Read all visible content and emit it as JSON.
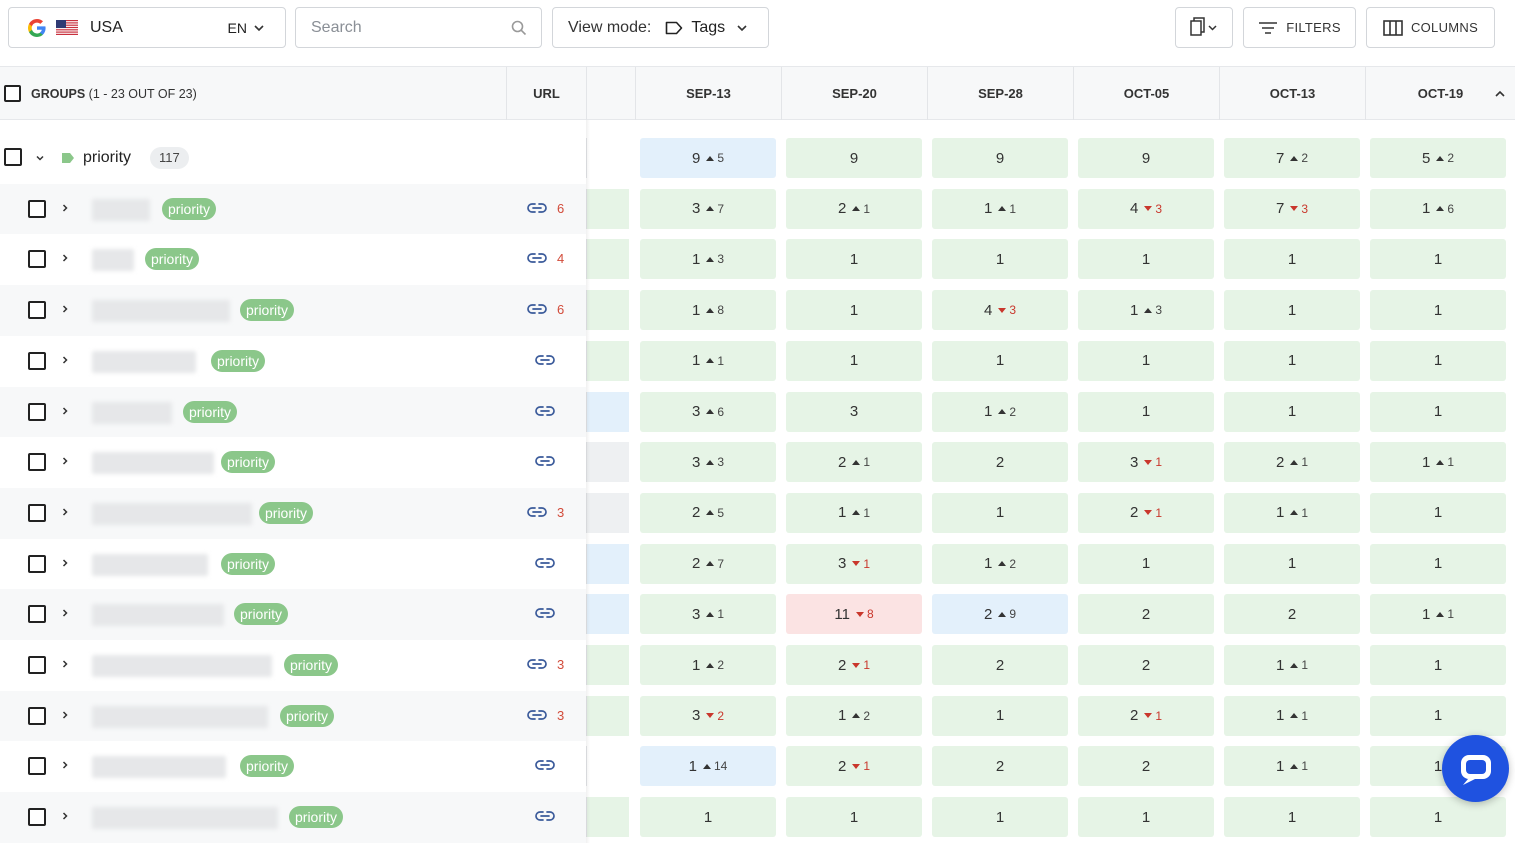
{
  "toolbar": {
    "location": "USA",
    "language": "EN",
    "search_placeholder": "Search",
    "view_mode_label": "View mode:",
    "view_mode_value": "Tags",
    "filters_label": "FILTERS",
    "columns_label": "COLUMNS"
  },
  "header": {
    "groups_label": "GROUPS",
    "groups_range": "(1 - 23 OUT OF 23)",
    "url_label": "URL",
    "dates": [
      "SEP-13",
      "SEP-20",
      "SEP-28",
      "OCT-05",
      "OCT-13",
      "OCT-19"
    ]
  },
  "group": {
    "name": "priority",
    "count": "117",
    "cells": [
      {
        "v": "9",
        "d": "5",
        "dir": "up",
        "bg": "blue"
      },
      {
        "v": "9",
        "d": "",
        "dir": "",
        "bg": "green"
      },
      {
        "v": "9",
        "d": "",
        "dir": "",
        "bg": "green"
      },
      {
        "v": "9",
        "d": "",
        "dir": "",
        "bg": "green"
      },
      {
        "v": "7",
        "d": "2",
        "dir": "up",
        "bg": "green"
      },
      {
        "v": "5",
        "d": "2",
        "dir": "up",
        "bg": "green"
      }
    ]
  },
  "rows": [
    {
      "tag": "priority",
      "link_count": "6",
      "cells": [
        {
          "v": "3",
          "d": "7",
          "dir": "up",
          "bg": "green"
        },
        {
          "v": "2",
          "d": "1",
          "dir": "up",
          "bg": "green"
        },
        {
          "v": "1",
          "d": "1",
          "dir": "up",
          "bg": "green"
        },
        {
          "v": "4",
          "d": "3",
          "dir": "down",
          "bg": "green"
        },
        {
          "v": "7",
          "d": "3",
          "dir": "down",
          "bg": "green"
        },
        {
          "v": "1",
          "d": "6",
          "dir": "up",
          "bg": "green"
        }
      ]
    },
    {
      "tag": "priority",
      "link_count": "4",
      "cells": [
        {
          "v": "1",
          "d": "3",
          "dir": "up",
          "bg": "green"
        },
        {
          "v": "1",
          "d": "",
          "dir": "",
          "bg": "green"
        },
        {
          "v": "1",
          "d": "",
          "dir": "",
          "bg": "green"
        },
        {
          "v": "1",
          "d": "",
          "dir": "",
          "bg": "green"
        },
        {
          "v": "1",
          "d": "",
          "dir": "",
          "bg": "green"
        },
        {
          "v": "1",
          "d": "",
          "dir": "",
          "bg": "green"
        }
      ]
    },
    {
      "tag": "priority",
      "link_count": "6",
      "cells": [
        {
          "v": "1",
          "d": "8",
          "dir": "up",
          "bg": "green"
        },
        {
          "v": "1",
          "d": "",
          "dir": "",
          "bg": "green"
        },
        {
          "v": "4",
          "d": "3",
          "dir": "down",
          "bg": "green"
        },
        {
          "v": "1",
          "d": "3",
          "dir": "up",
          "bg": "green"
        },
        {
          "v": "1",
          "d": "",
          "dir": "",
          "bg": "green"
        },
        {
          "v": "1",
          "d": "",
          "dir": "",
          "bg": "green"
        }
      ]
    },
    {
      "tag": "priority",
      "link_count": "",
      "cells": [
        {
          "v": "1",
          "d": "1",
          "dir": "up",
          "bg": "green"
        },
        {
          "v": "1",
          "d": "",
          "dir": "",
          "bg": "green"
        },
        {
          "v": "1",
          "d": "",
          "dir": "",
          "bg": "green"
        },
        {
          "v": "1",
          "d": "",
          "dir": "",
          "bg": "green"
        },
        {
          "v": "1",
          "d": "",
          "dir": "",
          "bg": "green"
        },
        {
          "v": "1",
          "d": "",
          "dir": "",
          "bg": "green"
        }
      ]
    },
    {
      "tag": "priority",
      "link_count": "",
      "cells": [
        {
          "v": "3",
          "d": "6",
          "dir": "up",
          "bg": "green"
        },
        {
          "v": "3",
          "d": "",
          "dir": "",
          "bg": "green"
        },
        {
          "v": "1",
          "d": "2",
          "dir": "up",
          "bg": "green"
        },
        {
          "v": "1",
          "d": "",
          "dir": "",
          "bg": "green"
        },
        {
          "v": "1",
          "d": "",
          "dir": "",
          "bg": "green"
        },
        {
          "v": "1",
          "d": "",
          "dir": "",
          "bg": "green"
        }
      ]
    },
    {
      "tag": "priority",
      "link_count": "",
      "cells": [
        {
          "v": "3",
          "d": "3",
          "dir": "up",
          "bg": "green"
        },
        {
          "v": "2",
          "d": "1",
          "dir": "up",
          "bg": "green"
        },
        {
          "v": "2",
          "d": "",
          "dir": "",
          "bg": "green"
        },
        {
          "v": "3",
          "d": "1",
          "dir": "down",
          "bg": "green"
        },
        {
          "v": "2",
          "d": "1",
          "dir": "up",
          "bg": "green"
        },
        {
          "v": "1",
          "d": "1",
          "dir": "up",
          "bg": "green"
        }
      ]
    },
    {
      "tag": "priority",
      "link_count": "3",
      "cells": [
        {
          "v": "2",
          "d": "5",
          "dir": "up",
          "bg": "green"
        },
        {
          "v": "1",
          "d": "1",
          "dir": "up",
          "bg": "green"
        },
        {
          "v": "1",
          "d": "",
          "dir": "",
          "bg": "green"
        },
        {
          "v": "2",
          "d": "1",
          "dir": "down",
          "bg": "green"
        },
        {
          "v": "1",
          "d": "1",
          "dir": "up",
          "bg": "green"
        },
        {
          "v": "1",
          "d": "",
          "dir": "",
          "bg": "green"
        }
      ]
    },
    {
      "tag": "priority",
      "link_count": "",
      "cells": [
        {
          "v": "2",
          "d": "7",
          "dir": "up",
          "bg": "green"
        },
        {
          "v": "3",
          "d": "1",
          "dir": "down",
          "bg": "green"
        },
        {
          "v": "1",
          "d": "2",
          "dir": "up",
          "bg": "green"
        },
        {
          "v": "1",
          "d": "",
          "dir": "",
          "bg": "green"
        },
        {
          "v": "1",
          "d": "",
          "dir": "",
          "bg": "green"
        },
        {
          "v": "1",
          "d": "",
          "dir": "",
          "bg": "green"
        }
      ]
    },
    {
      "tag": "priority",
      "link_count": "",
      "cells": [
        {
          "v": "3",
          "d": "1",
          "dir": "up",
          "bg": "green"
        },
        {
          "v": "11",
          "d": "8",
          "dir": "down",
          "bg": "red"
        },
        {
          "v": "2",
          "d": "9",
          "dir": "up",
          "bg": "blue"
        },
        {
          "v": "2",
          "d": "",
          "dir": "",
          "bg": "green"
        },
        {
          "v": "2",
          "d": "",
          "dir": "",
          "bg": "green"
        },
        {
          "v": "1",
          "d": "1",
          "dir": "up",
          "bg": "green"
        }
      ]
    },
    {
      "tag": "priority",
      "link_count": "3",
      "cells": [
        {
          "v": "1",
          "d": "2",
          "dir": "up",
          "bg": "green"
        },
        {
          "v": "2",
          "d": "1",
          "dir": "down",
          "bg": "green"
        },
        {
          "v": "2",
          "d": "",
          "dir": "",
          "bg": "green"
        },
        {
          "v": "2",
          "d": "",
          "dir": "",
          "bg": "green"
        },
        {
          "v": "1",
          "d": "1",
          "dir": "up",
          "bg": "green"
        },
        {
          "v": "1",
          "d": "",
          "dir": "",
          "bg": "green"
        }
      ]
    },
    {
      "tag": "priority",
      "link_count": "3",
      "cells": [
        {
          "v": "3",
          "d": "2",
          "dir": "down",
          "bg": "green"
        },
        {
          "v": "1",
          "d": "2",
          "dir": "up",
          "bg": "green"
        },
        {
          "v": "1",
          "d": "",
          "dir": "",
          "bg": "green"
        },
        {
          "v": "2",
          "d": "1",
          "dir": "down",
          "bg": "green"
        },
        {
          "v": "1",
          "d": "1",
          "dir": "up",
          "bg": "green"
        },
        {
          "v": "1",
          "d": "",
          "dir": "",
          "bg": "green"
        }
      ]
    },
    {
      "tag": "priority",
      "link_count": "",
      "cells": [
        {
          "v": "1",
          "d": "14",
          "dir": "up",
          "bg": "blue"
        },
        {
          "v": "2",
          "d": "1",
          "dir": "down",
          "bg": "green"
        },
        {
          "v": "2",
          "d": "",
          "dir": "",
          "bg": "green"
        },
        {
          "v": "2",
          "d": "",
          "dir": "",
          "bg": "green"
        },
        {
          "v": "1",
          "d": "1",
          "dir": "up",
          "bg": "green"
        },
        {
          "v": "1",
          "d": "",
          "dir": "",
          "bg": "green"
        }
      ]
    },
    {
      "tag": "priority",
      "link_count": "",
      "cells": [
        {
          "v": "1",
          "d": "",
          "dir": "",
          "bg": "green"
        },
        {
          "v": "1",
          "d": "",
          "dir": "",
          "bg": "green"
        },
        {
          "v": "1",
          "d": "",
          "dir": "",
          "bg": "green"
        },
        {
          "v": "1",
          "d": "",
          "dir": "",
          "bg": "green"
        },
        {
          "v": "1",
          "d": "",
          "dir": "",
          "bg": "green"
        },
        {
          "v": "1",
          "d": "",
          "dir": "",
          "bg": "green"
        }
      ]
    }
  ],
  "colors": {
    "accent": "#1f52e0",
    "tag": "#8bc78a",
    "cell_green": "#e6f4e6",
    "cell_blue": "#e3f0fb",
    "cell_red": "#fbe3e3",
    "delta_down": "#c9372c"
  }
}
